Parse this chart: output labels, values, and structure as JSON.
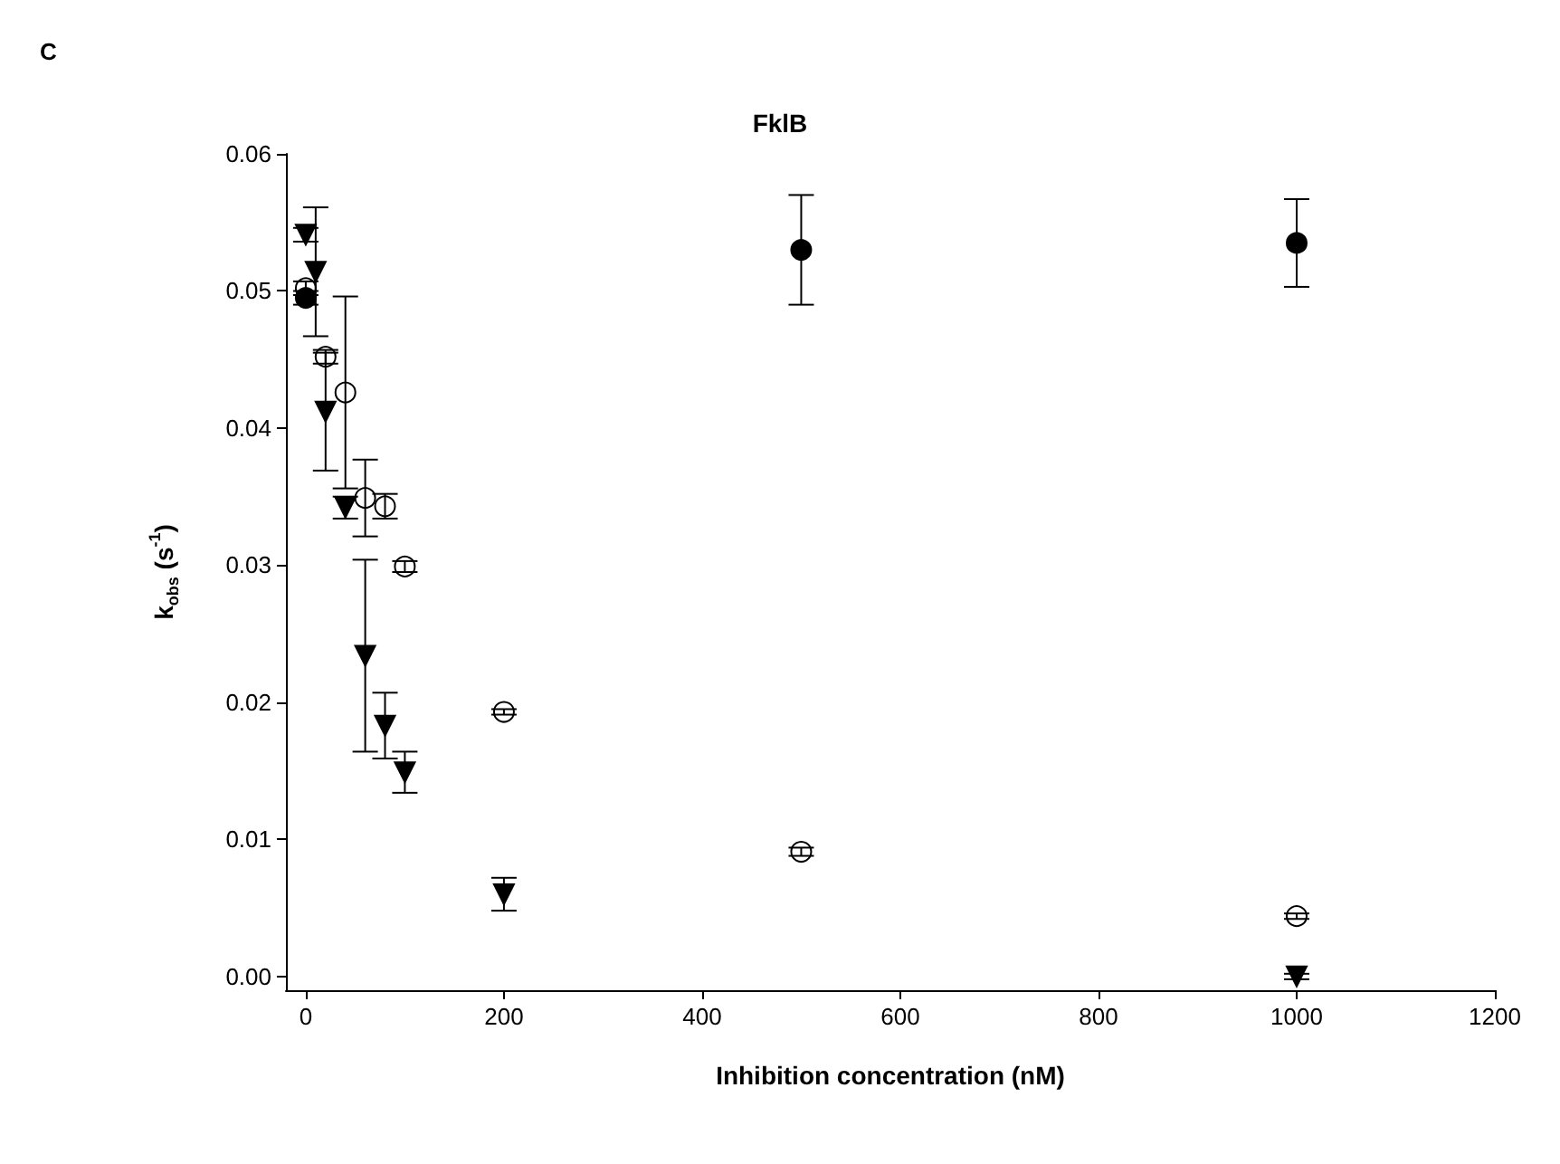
{
  "chart_data": {
    "type": "scatter",
    "title": "FklB",
    "xlabel": "Inhibition concentration (nM)",
    "ylabel": "k$_{obs}$ (s$^{-1}$)",
    "annotations": [
      "C"
    ],
    "xlim": [
      -20,
      1200
    ],
    "xticks": [
      0,
      200,
      400,
      600,
      800,
      1000,
      1200
    ],
    "ylim": [
      -0.001,
      0.06
    ],
    "yticks": [
      {
        "value": 0,
        "label": "0.00"
      },
      {
        "value": 0.01,
        "label": "0.01"
      },
      {
        "value": 0.02,
        "label": "0.02"
      },
      {
        "value": 0.03,
        "label": "0.03"
      },
      {
        "value": 0.04,
        "label": "0.04"
      },
      {
        "value": 0.05,
        "label": "0.05"
      },
      {
        "value": 0.06,
        "label": "0.06"
      }
    ],
    "series": [
      {
        "marker": "circle",
        "color": "#000000",
        "x": [
          0,
          500,
          1000
        ],
        "values": [
          0.0495,
          0.053,
          0.0535
        ],
        "errors": [
          0.0005,
          0.004,
          0.0032
        ]
      },
      {
        "marker": "triangle",
        "color": "#000000",
        "x": [
          0,
          10,
          20,
          40,
          60,
          80,
          100,
          200,
          1000
        ],
        "values": [
          0.0541,
          0.0514,
          0.0412,
          0.0342,
          0.0234,
          0.0183,
          0.0149,
          0.006,
          0.0
        ],
        "errors": [
          0.0005,
          0.0047,
          0.0043,
          0.0008,
          0.007,
          0.0024,
          0.0015,
          0.0012,
          0.0002
        ]
      },
      {
        "marker": "circle",
        "color": "#ffffff",
        "x": [
          0,
          20,
          40,
          60,
          80,
          100,
          200,
          500,
          1000
        ],
        "values": [
          0.0502,
          0.0452,
          0.0426,
          0.0349,
          0.0343,
          0.0299,
          0.0193,
          0.0091,
          0.0044
        ],
        "errors": [
          0.0005,
          0.0005,
          0.007,
          0.0028,
          0.0009,
          0.0004,
          0.0002,
          0.0003,
          0.0002
        ]
      }
    ]
  }
}
